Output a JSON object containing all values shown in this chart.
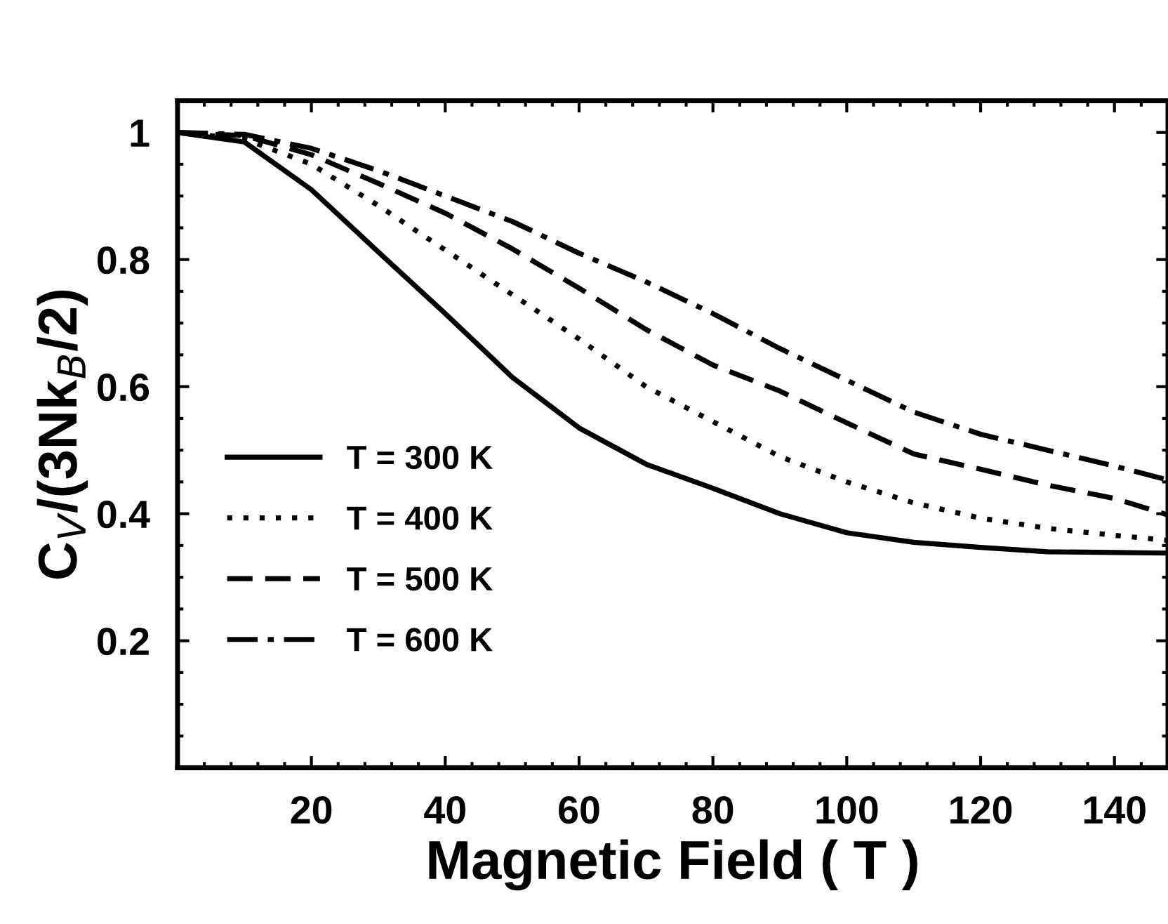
{
  "chart_data": {
    "type": "line",
    "xlabel": "Magnetic Field ( T )",
    "ylabel": "C$_{V}$/(3Nk$_{B}$/2)",
    "x": [
      0,
      10,
      20,
      30,
      40,
      50,
      60,
      70,
      80,
      90,
      100,
      110,
      120,
      130,
      140,
      148
    ],
    "series": [
      {
        "name": "T = 300 K",
        "color": "#000000",
        "line_style": "solid",
        "values": [
          1,
          0.985,
          0.91,
          0.812,
          0.715,
          0.615,
          0.535,
          0.478,
          0.44,
          0.4,
          0.37,
          0.355,
          0.347,
          0.34,
          0.339,
          0.338
        ]
      },
      {
        "name": "T = 400 K",
        "color": "#000000",
        "line_style": "dotted",
        "values": [
          1,
          0.99,
          0.95,
          0.885,
          0.815,
          0.745,
          0.675,
          0.6,
          0.545,
          0.49,
          0.45,
          0.417,
          0.393,
          0.377,
          0.366,
          0.358
        ]
      },
      {
        "name": "T = 500 K",
        "color": "#000000",
        "line_style": "dashed",
        "values": [
          1,
          0.995,
          0.965,
          0.92,
          0.873,
          0.817,
          0.755,
          0.69,
          0.634,
          0.593,
          0.543,
          0.494,
          0.47,
          0.445,
          0.424,
          0.398
        ]
      },
      {
        "name": "T = 600 K",
        "color": "#000000",
        "line_style": "dashdot",
        "values": [
          1,
          0.997,
          0.975,
          0.94,
          0.9,
          0.86,
          0.81,
          0.765,
          0.715,
          0.66,
          0.61,
          0.56,
          0.525,
          0.5,
          0.475,
          0.453
        ]
      }
    ],
    "xlim": [
      0,
      148
    ],
    "ylim": [
      0,
      1.05
    ],
    "xticks": [
      20,
      40,
      60,
      80,
      100,
      120,
      140
    ],
    "yticks": [
      {
        "value": 0.2,
        "label": "0.2"
      },
      {
        "value": 0.4,
        "label": "0.4"
      },
      {
        "value": 0.6,
        "label": "0.6"
      },
      {
        "value": 0.8,
        "label": "0.8"
      },
      {
        "value": 1,
        "label": "1"
      }
    ],
    "legend": "lower left",
    "grid": false,
    "marker": "none"
  }
}
